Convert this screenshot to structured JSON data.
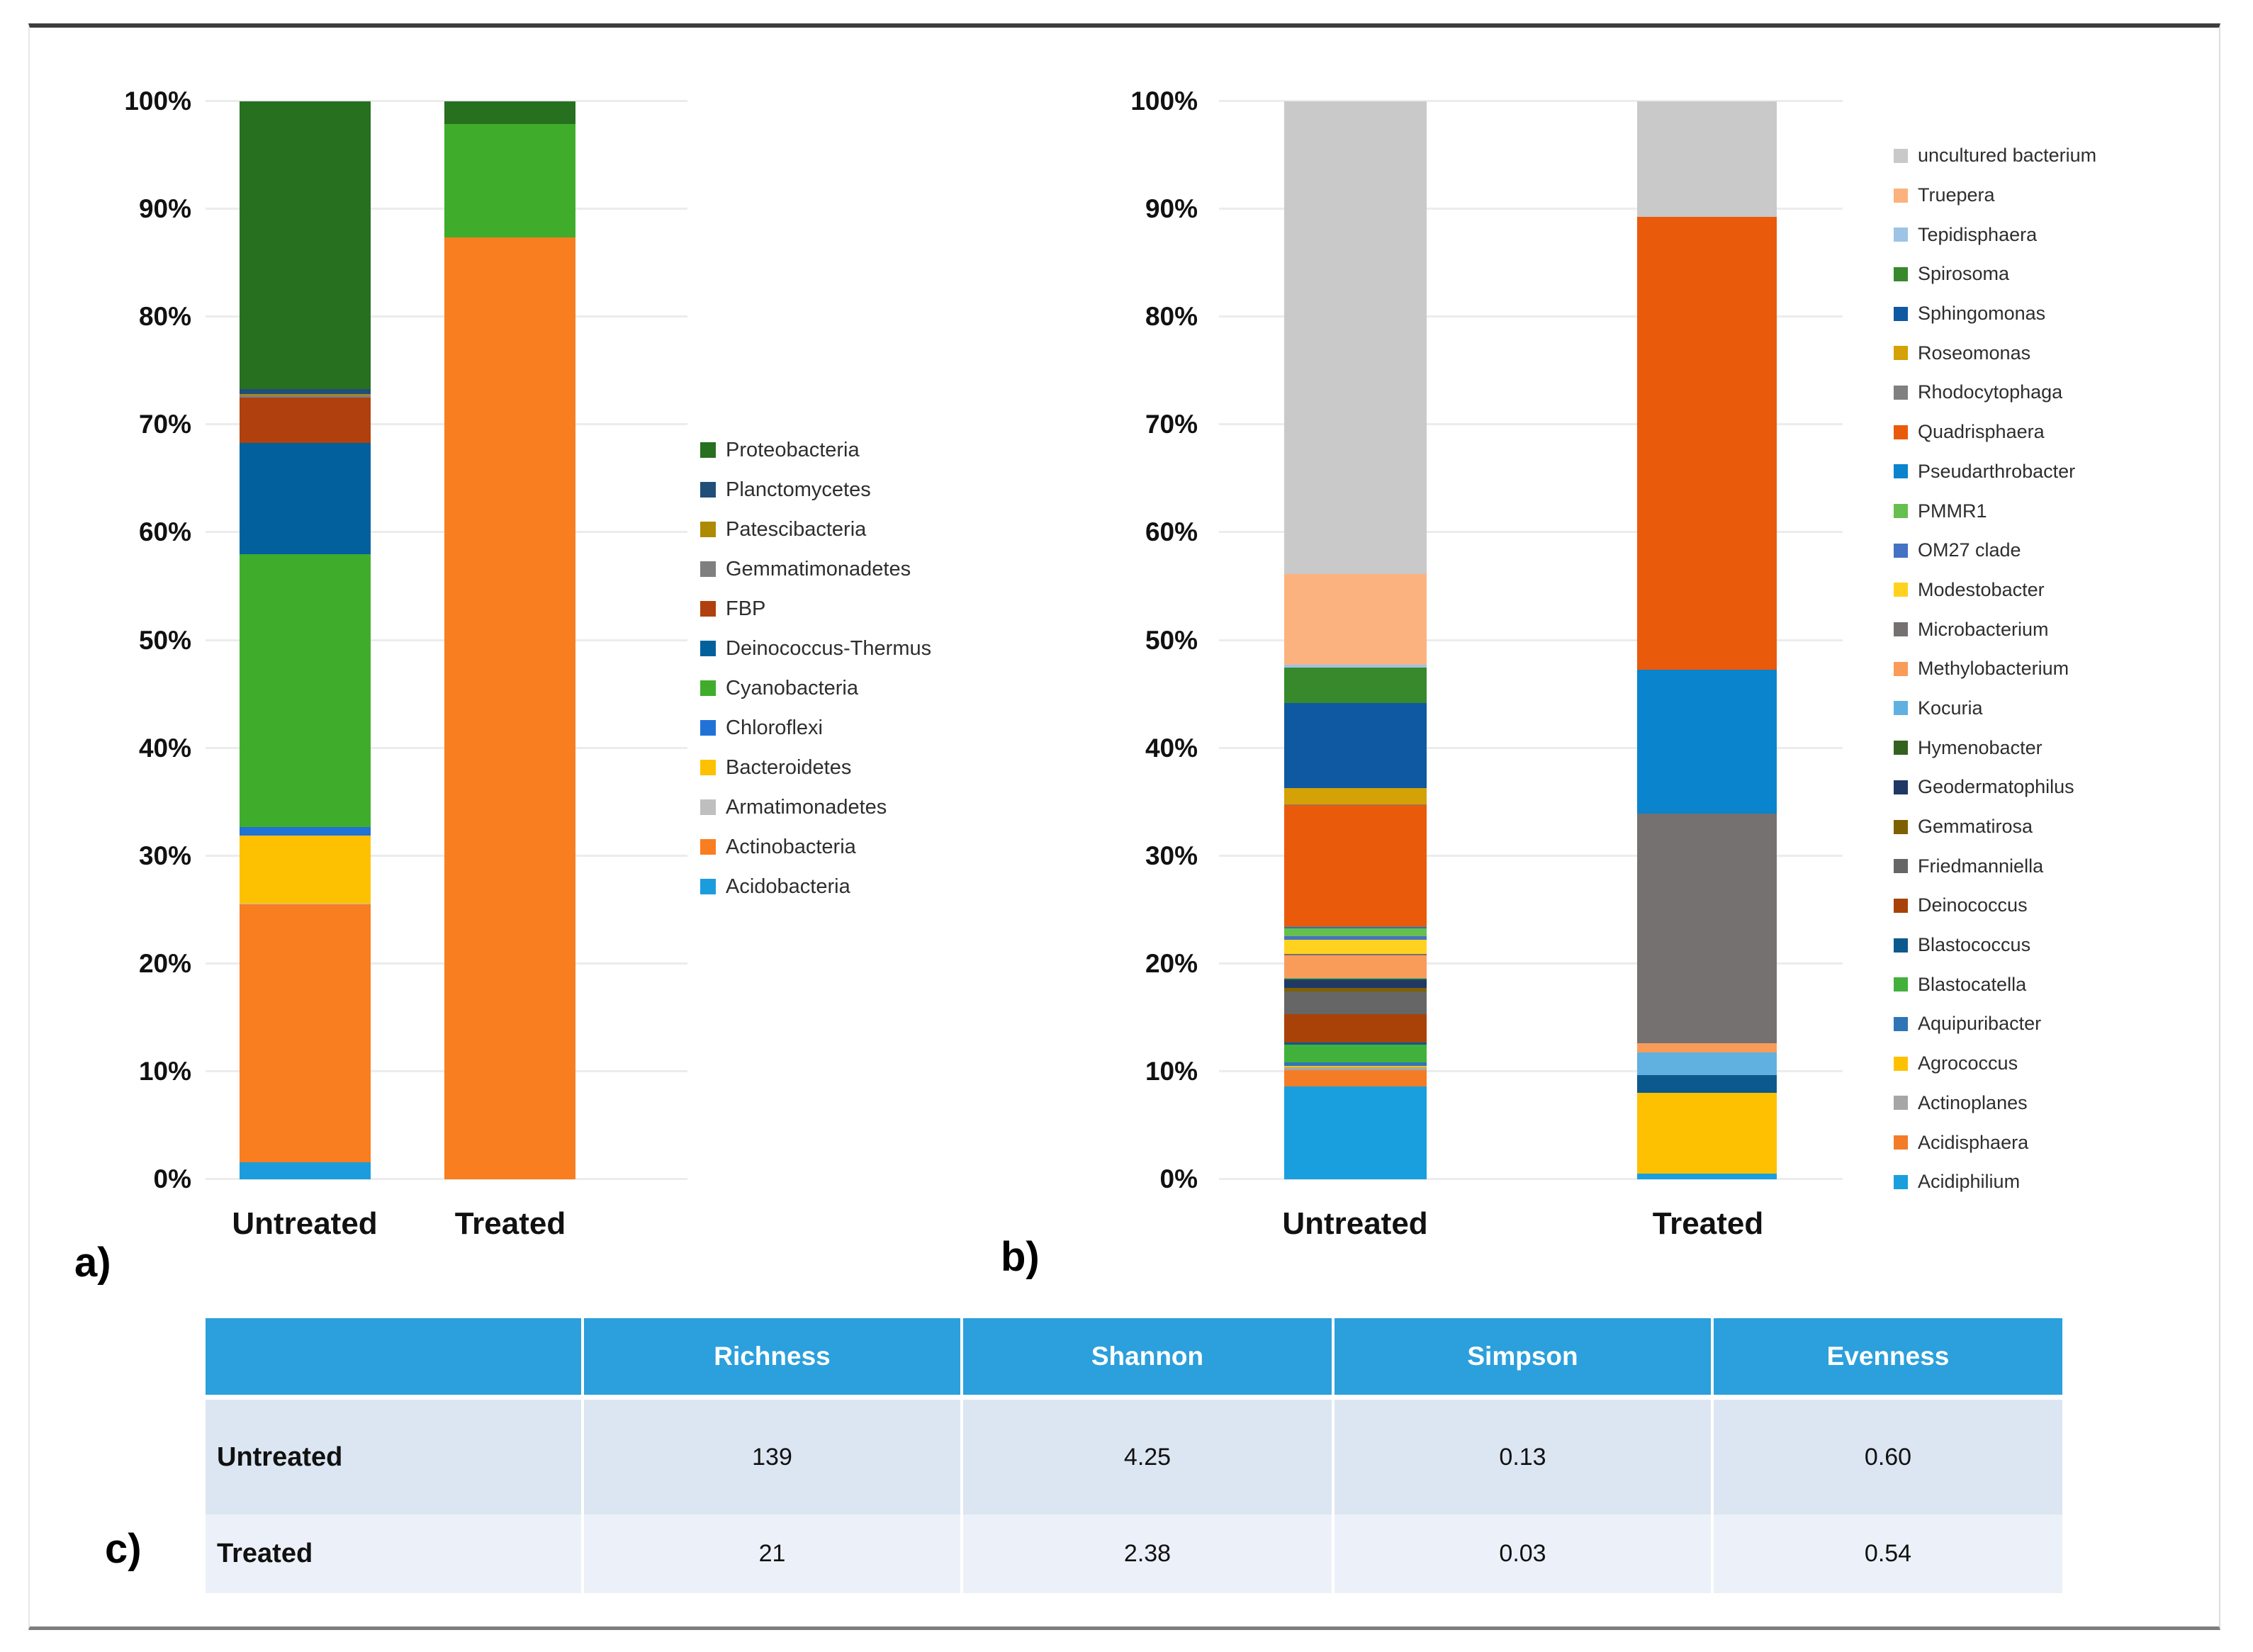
{
  "figure": {
    "panel_labels": {
      "a": "a)",
      "b": "b)",
      "c": "c)"
    }
  },
  "chart_data": [
    {
      "id": "phyla",
      "type": "bar",
      "stacked": true,
      "title": "",
      "xlabel": "",
      "ylabel": "",
      "ylim": [
        0,
        100
      ],
      "grid": true,
      "legend_position": "right",
      "ytick_labels": [
        "0%",
        "10%",
        "20%",
        "30%",
        "40%",
        "50%",
        "60%",
        "70%",
        "80%",
        "90%",
        "100%"
      ],
      "categories": [
        "Untreated",
        "Treated"
      ],
      "series_bottom_to_top": [
        {
          "name": "Acidobacteria",
          "color": "#1b9ddd",
          "values": [
            1.6,
            0
          ]
        },
        {
          "name": "Actinobacteria",
          "color": "#f97e20",
          "values": [
            23.9,
            87.4
          ]
        },
        {
          "name": "Armatimonadetes",
          "color": "#bfbfbf",
          "values": [
            0.1,
            0
          ]
        },
        {
          "name": "Bacteroidetes",
          "color": "#fec102",
          "values": [
            6.3,
            0
          ]
        },
        {
          "name": "Chloroflexi",
          "color": "#2172d7",
          "values": [
            0.8,
            0
          ]
        },
        {
          "name": "Cyanobacteria",
          "color": "#3fad2b",
          "values": [
            25.3,
            10.5
          ]
        },
        {
          "name": "Deinococcus-Thermus",
          "color": "#02609c",
          "values": [
            10.3,
            0
          ]
        },
        {
          "name": "FBP",
          "color": "#b0400e",
          "values": [
            4.2,
            0
          ]
        },
        {
          "name": "Gemmatimonadetes",
          "color": "#7f7f7f",
          "values": [
            0.25,
            0
          ]
        },
        {
          "name": "Patescibacteria",
          "color": "#ad8a00",
          "values": [
            0.1,
            0
          ]
        },
        {
          "name": "Planctomycetes",
          "color": "#1f4e79",
          "values": [
            0.45,
            0
          ]
        },
        {
          "name": "Proteobacteria",
          "color": "#26701f",
          "values": [
            26.7,
            2.1
          ]
        }
      ]
    },
    {
      "id": "genera",
      "type": "bar",
      "stacked": true,
      "title": "",
      "xlabel": "",
      "ylabel": "",
      "ylim": [
        0,
        100
      ],
      "grid": true,
      "legend_position": "right",
      "ytick_labels": [
        "0%",
        "10%",
        "20%",
        "30%",
        "40%",
        "50%",
        "60%",
        "70%",
        "80%",
        "90%",
        "100%"
      ],
      "categories": [
        "Untreated",
        "Treated"
      ],
      "series_bottom_to_top": [
        {
          "name": "Acidiphilium",
          "color": "#199fdd",
          "values": [
            8.6,
            0.5
          ]
        },
        {
          "name": "Acidisphaera",
          "color": "#f57c27",
          "values": [
            1.5,
            0
          ]
        },
        {
          "name": "Actinoplanes",
          "color": "#a6a6a6",
          "values": [
            0.3,
            0
          ]
        },
        {
          "name": "Agrococcus",
          "color": "#fec102",
          "values": [
            0.1,
            7.5
          ]
        },
        {
          "name": "Aquipuribacter",
          "color": "#2e75b6",
          "values": [
            0.35,
            0
          ]
        },
        {
          "name": "Blastocatella",
          "color": "#41b13c",
          "values": [
            1.65,
            0
          ]
        },
        {
          "name": "Blastococcus",
          "color": "#0c5a8d",
          "values": [
            0.2,
            1.7
          ]
        },
        {
          "name": "Deinococcus",
          "color": "#a84209",
          "values": [
            2.6,
            0
          ]
        },
        {
          "name": "Friedmanniella",
          "color": "#666666",
          "values": [
            2.1,
            0
          ]
        },
        {
          "name": "Gemmatirosa",
          "color": "#7f6000",
          "values": [
            0.35,
            0
          ]
        },
        {
          "name": "Geodermatophilus",
          "color": "#1f3864",
          "values": [
            0.75,
            0
          ]
        },
        {
          "name": "Hymenobacter",
          "color": "#34611f",
          "values": [
            0.1,
            0
          ]
        },
        {
          "name": "Kocuria",
          "color": "#60b1e0",
          "values": [
            0.1,
            2.1
          ]
        },
        {
          "name": "Methylobacterium",
          "color": "#f99c5a",
          "values": [
            2.1,
            0.8
          ]
        },
        {
          "name": "Microbacterium",
          "color": "#767171",
          "values": [
            0.1,
            21.3
          ]
        },
        {
          "name": "Modestobacter",
          "color": "#ffd21f",
          "values": [
            1.3,
            0
          ]
        },
        {
          "name": "OM27 clade",
          "color": "#4472c4",
          "values": [
            0.35,
            0
          ]
        },
        {
          "name": "PMMR1",
          "color": "#67bf4f",
          "values": [
            0.75,
            0
          ]
        },
        {
          "name": "Pseudarthrobacter",
          "color": "#0a84cd",
          "values": [
            0.1,
            13.4
          ]
        },
        {
          "name": "Quadrisphaera",
          "color": "#ea5a0b",
          "values": [
            11.3,
            42.0
          ]
        },
        {
          "name": "Rhodocytophaga",
          "color": "#808080",
          "values": [
            0.1,
            0
          ]
        },
        {
          "name": "Roseomonas",
          "color": "#d4a106",
          "values": [
            1.5,
            0
          ]
        },
        {
          "name": "Sphingomonas",
          "color": "#0e59a2",
          "values": [
            7.9,
            0
          ]
        },
        {
          "name": "Spirosoma",
          "color": "#37892c",
          "values": [
            3.3,
            0
          ]
        },
        {
          "name": "Tepidisphaera",
          "color": "#9dc3e6",
          "values": [
            0.25,
            0
          ]
        },
        {
          "name": "Truepera",
          "color": "#fcb27e",
          "values": [
            8.4,
            0
          ]
        },
        {
          "name": "uncultured bacterium",
          "color": "#c9c9c9",
          "values": [
            43.85,
            10.7
          ]
        }
      ]
    }
  ],
  "table": {
    "headers": [
      "",
      "Richness",
      "Shannon",
      "Simpson",
      "Evenness"
    ],
    "rows": [
      {
        "label": "Untreated",
        "values": [
          "139",
          "4.25",
          "0.13",
          "0.60"
        ]
      },
      {
        "label": "Treated",
        "values": [
          "21",
          "2.38",
          "0.03",
          "0.54"
        ]
      }
    ],
    "header_color": "#2ba0dc",
    "row_colors": [
      "#dce6f2",
      "#ecf1f9"
    ]
  }
}
